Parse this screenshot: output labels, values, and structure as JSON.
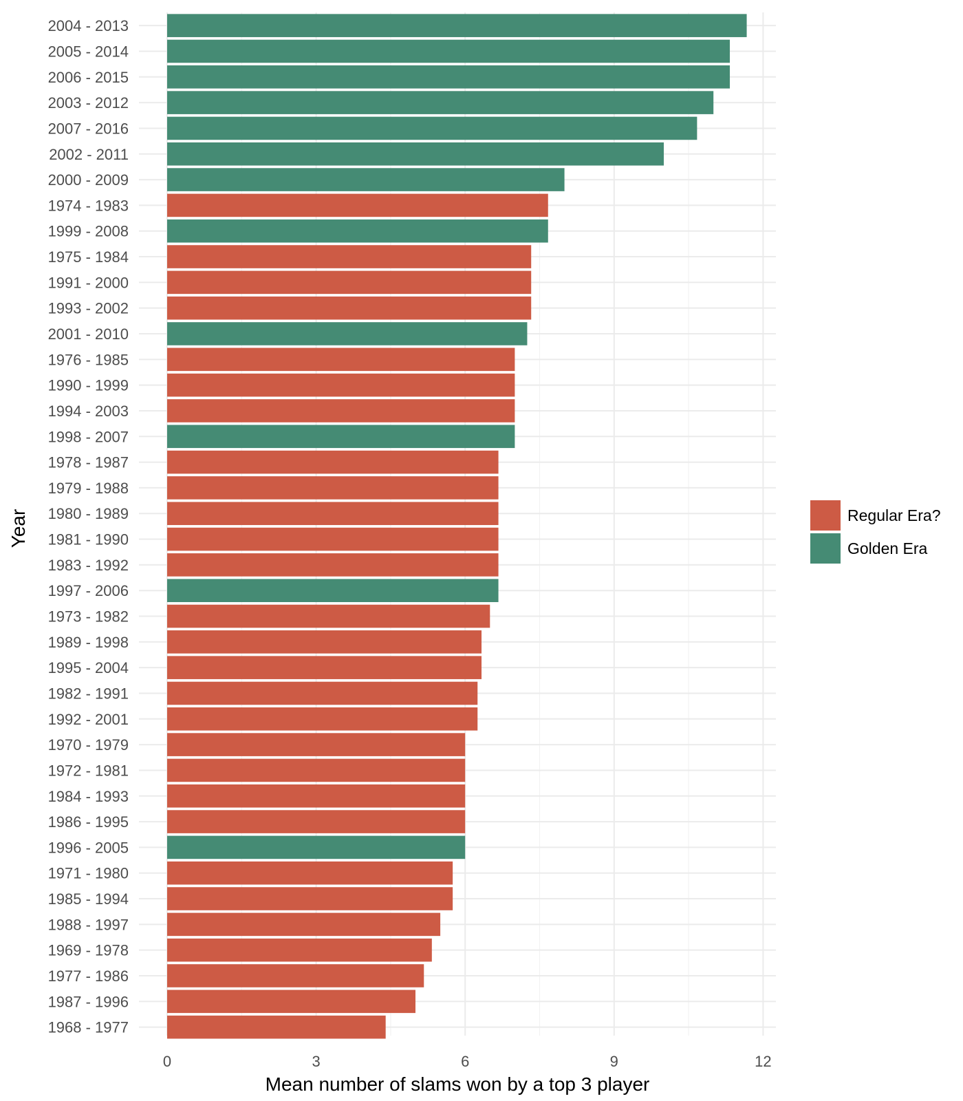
{
  "chart_data": {
    "type": "bar",
    "orientation": "horizontal",
    "xlabel": "Mean number of slams won by a top 3 player",
    "ylabel": "Year",
    "xlim": [
      0,
      12
    ],
    "x_ticks": [
      "0",
      "3",
      "6",
      "9",
      "12"
    ],
    "grid": true,
    "legend_position": "right",
    "legend": [
      {
        "name": "Regular Era?",
        "color": "#CD5B45"
      },
      {
        "name": "Golden Era",
        "color": "#458B74"
      }
    ],
    "categories": [
      "2004 - 2013",
      "2005 - 2014",
      "2006 - 2015",
      "2003 - 2012",
      "2007 - 2016",
      "2002 - 2011",
      "2000 - 2009",
      "1974 - 1983",
      "1999 - 2008",
      "1975 - 1984",
      "1991 - 2000",
      "1993 - 2002",
      "2001 - 2010",
      "1976 - 1985",
      "1990 - 1999",
      "1994 - 2003",
      "1998 - 2007",
      "1978 - 1987",
      "1979 - 1988",
      "1980 - 1989",
      "1981 - 1990",
      "1983 - 1992",
      "1997 - 2006",
      "1973 - 1982",
      "1989 - 1998",
      "1995 - 2004",
      "1982 - 1991",
      "1992 - 2001",
      "1970 - 1979",
      "1972 - 1981",
      "1984 - 1993",
      "1986 - 1995",
      "1996 - 2005",
      "1971 - 1980",
      "1985 - 1994",
      "1988 - 1997",
      "1969 - 1978",
      "1977 - 1986",
      "1987 - 1996",
      "1968 - 1977"
    ],
    "values": [
      11.67,
      11.33,
      11.33,
      11.0,
      10.67,
      10.0,
      8.0,
      7.67,
      7.67,
      7.33,
      7.33,
      7.33,
      7.25,
      7.0,
      7.0,
      7.0,
      7.0,
      6.67,
      6.67,
      6.67,
      6.67,
      6.67,
      6.67,
      6.5,
      6.33,
      6.33,
      6.25,
      6.25,
      6.0,
      6.0,
      6.0,
      6.0,
      6.0,
      5.75,
      5.75,
      5.5,
      5.33,
      5.17,
      5.0,
      4.4
    ],
    "groups": [
      "Golden Era",
      "Golden Era",
      "Golden Era",
      "Golden Era",
      "Golden Era",
      "Golden Era",
      "Golden Era",
      "Regular Era?",
      "Golden Era",
      "Regular Era?",
      "Regular Era?",
      "Regular Era?",
      "Golden Era",
      "Regular Era?",
      "Regular Era?",
      "Regular Era?",
      "Golden Era",
      "Regular Era?",
      "Regular Era?",
      "Regular Era?",
      "Regular Era?",
      "Regular Era?",
      "Golden Era",
      "Regular Era?",
      "Regular Era?",
      "Regular Era?",
      "Regular Era?",
      "Regular Era?",
      "Regular Era?",
      "Regular Era?",
      "Regular Era?",
      "Regular Era?",
      "Golden Era",
      "Regular Era?",
      "Regular Era?",
      "Regular Era?",
      "Regular Era?",
      "Regular Era?",
      "Regular Era?",
      "Regular Era?"
    ]
  }
}
